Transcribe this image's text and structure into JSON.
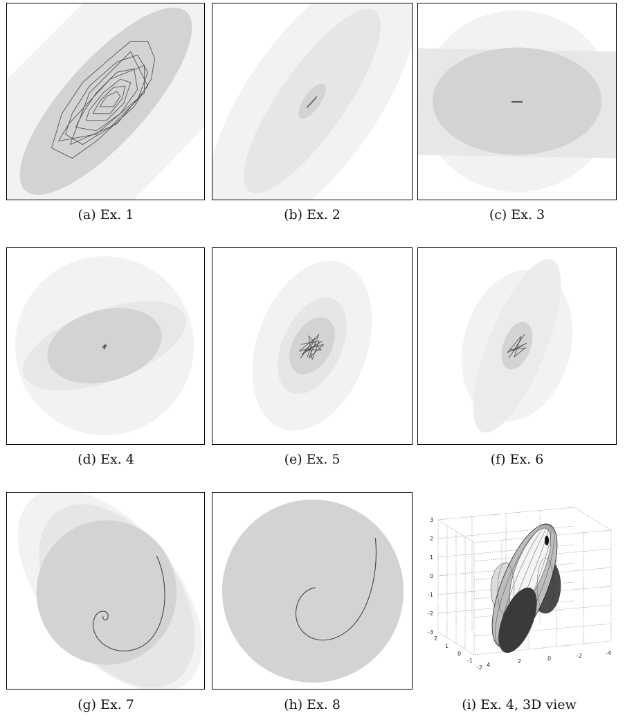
{
  "figures": [
    {
      "id": "a",
      "caption": "(a) Ex. 1"
    },
    {
      "id": "b",
      "caption": "(b) Ex. 2"
    },
    {
      "id": "c",
      "caption": "(c) Ex. 3"
    },
    {
      "id": "d",
      "caption": "(d) Ex. 4"
    },
    {
      "id": "e",
      "caption": "(e) Ex. 5"
    },
    {
      "id": "f",
      "caption": "(f) Ex. 6"
    },
    {
      "id": "g",
      "caption": "(g) Ex. 7"
    },
    {
      "id": "h",
      "caption": "(h) Ex. 8"
    },
    {
      "id": "i",
      "caption": "(i) Ex. 4, 3D view"
    }
  ],
  "plot3d": {
    "z_ticks": [
      "3",
      "2",
      "1",
      "0",
      "-1",
      "-2",
      "-3"
    ],
    "x_ticks": [
      "2",
      "1",
      "0",
      "-1",
      "-2"
    ],
    "y_ticks": [
      "4",
      "2",
      "0",
      "-2",
      "-4"
    ]
  },
  "colors": {
    "light_fill": "#f2f2f2",
    "mid_fill": "#e6e6e6",
    "dark_fill": "#d3d3d3",
    "trajectory": "#555555",
    "border": "#000000"
  }
}
